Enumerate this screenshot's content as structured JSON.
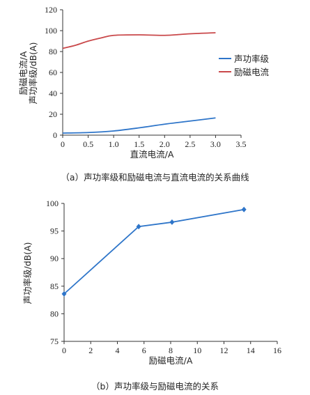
{
  "chart_data": [
    {
      "type": "line",
      "caption": "（a）声功率级和励磁电流与直流电流的关系曲线",
      "xlabel": "直流电流/A",
      "ylabel": [
        "励磁电流/A",
        "声功率级/dB(A)"
      ],
      "xlim": [
        0,
        3.5
      ],
      "ylim": [
        0,
        120
      ],
      "xticks": [
        "0",
        "0.5",
        "1.0",
        "1.5",
        "2.0",
        "2.5",
        "3.0",
        "3.5"
      ],
      "yticks": [
        "0",
        "20",
        "40",
        "60",
        "80",
        "100",
        "120"
      ],
      "legend_position": "right",
      "grid": false,
      "series": [
        {
          "name": "声功率级",
          "color": "#2e75c9",
          "x": [
            0,
            0.5,
            1.0,
            1.5,
            2.0,
            2.5,
            3.0
          ],
          "y": [
            2.0,
            2.5,
            4.0,
            7.0,
            10.5,
            13.5,
            16.5
          ]
        },
        {
          "name": "励磁电流",
          "color": "#c9484a",
          "x": [
            0,
            0.25,
            0.5,
            0.75,
            1.0,
            1.5,
            2.0,
            2.5,
            3.0
          ],
          "y": [
            83,
            86,
            90,
            93,
            95.5,
            96,
            95.5,
            97,
            98
          ]
        }
      ]
    },
    {
      "type": "line",
      "caption": "（b）声功率级与励磁电流的关系",
      "xlabel": "励磁电流/A",
      "ylabel": "声功率级/dB(A)",
      "xlim": [
        0,
        16
      ],
      "ylim": [
        75,
        100
      ],
      "xticks": [
        "0",
        "2",
        "4",
        "6",
        "8",
        "10",
        "12",
        "14",
        "16"
      ],
      "yticks": [
        "75",
        "80",
        "85",
        "90",
        "95",
        "100"
      ],
      "grid": false,
      "series": [
        {
          "name": "",
          "color": "#2e75c9",
          "marker": "diamond",
          "x": [
            0,
            5.6,
            8.1,
            13.5
          ],
          "y": [
            83.6,
            95.8,
            96.6,
            98.9
          ]
        }
      ]
    }
  ]
}
